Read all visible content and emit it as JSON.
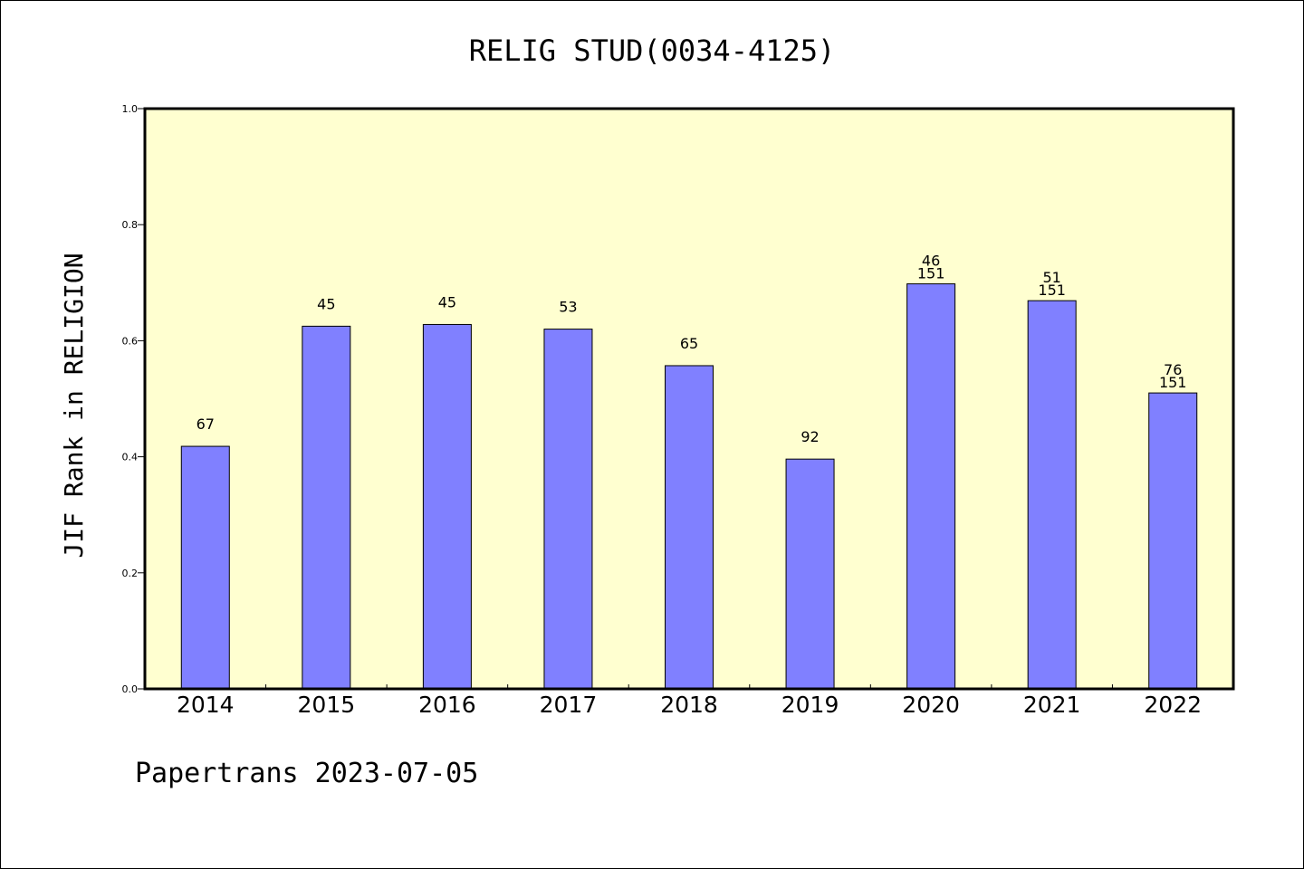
{
  "chart_data": {
    "type": "bar",
    "title": "RELIG STUD(0034-4125)",
    "ylabel": "JIF Rank in RELIGION",
    "xlabel": "",
    "ylim": [
      0,
      1.0
    ],
    "yticks": [
      "0.0",
      "0.2",
      "0.4",
      "0.6",
      "0.8",
      "1.0"
    ],
    "categories": [
      "2014",
      "2015",
      "2016",
      "2017",
      "2018",
      "2019",
      "2020",
      "2021",
      "2022"
    ],
    "values": [
      0.418,
      0.625,
      0.628,
      0.62,
      0.557,
      0.396,
      0.698,
      0.669,
      0.51
    ],
    "labels": [
      [
        "67"
      ],
      [
        "45"
      ],
      [
        "45"
      ],
      [
        "53"
      ],
      [
        "65"
      ],
      [
        "92"
      ],
      [
        "46",
        "151"
      ],
      [
        "51",
        "151"
      ],
      [
        "76",
        "151"
      ]
    ],
    "grid": false,
    "colors": {
      "bar": "#8080ff",
      "plot_background": "#ffffd0",
      "bar_edge": "#000000"
    }
  },
  "footer": "Papertrans 2023-07-05"
}
